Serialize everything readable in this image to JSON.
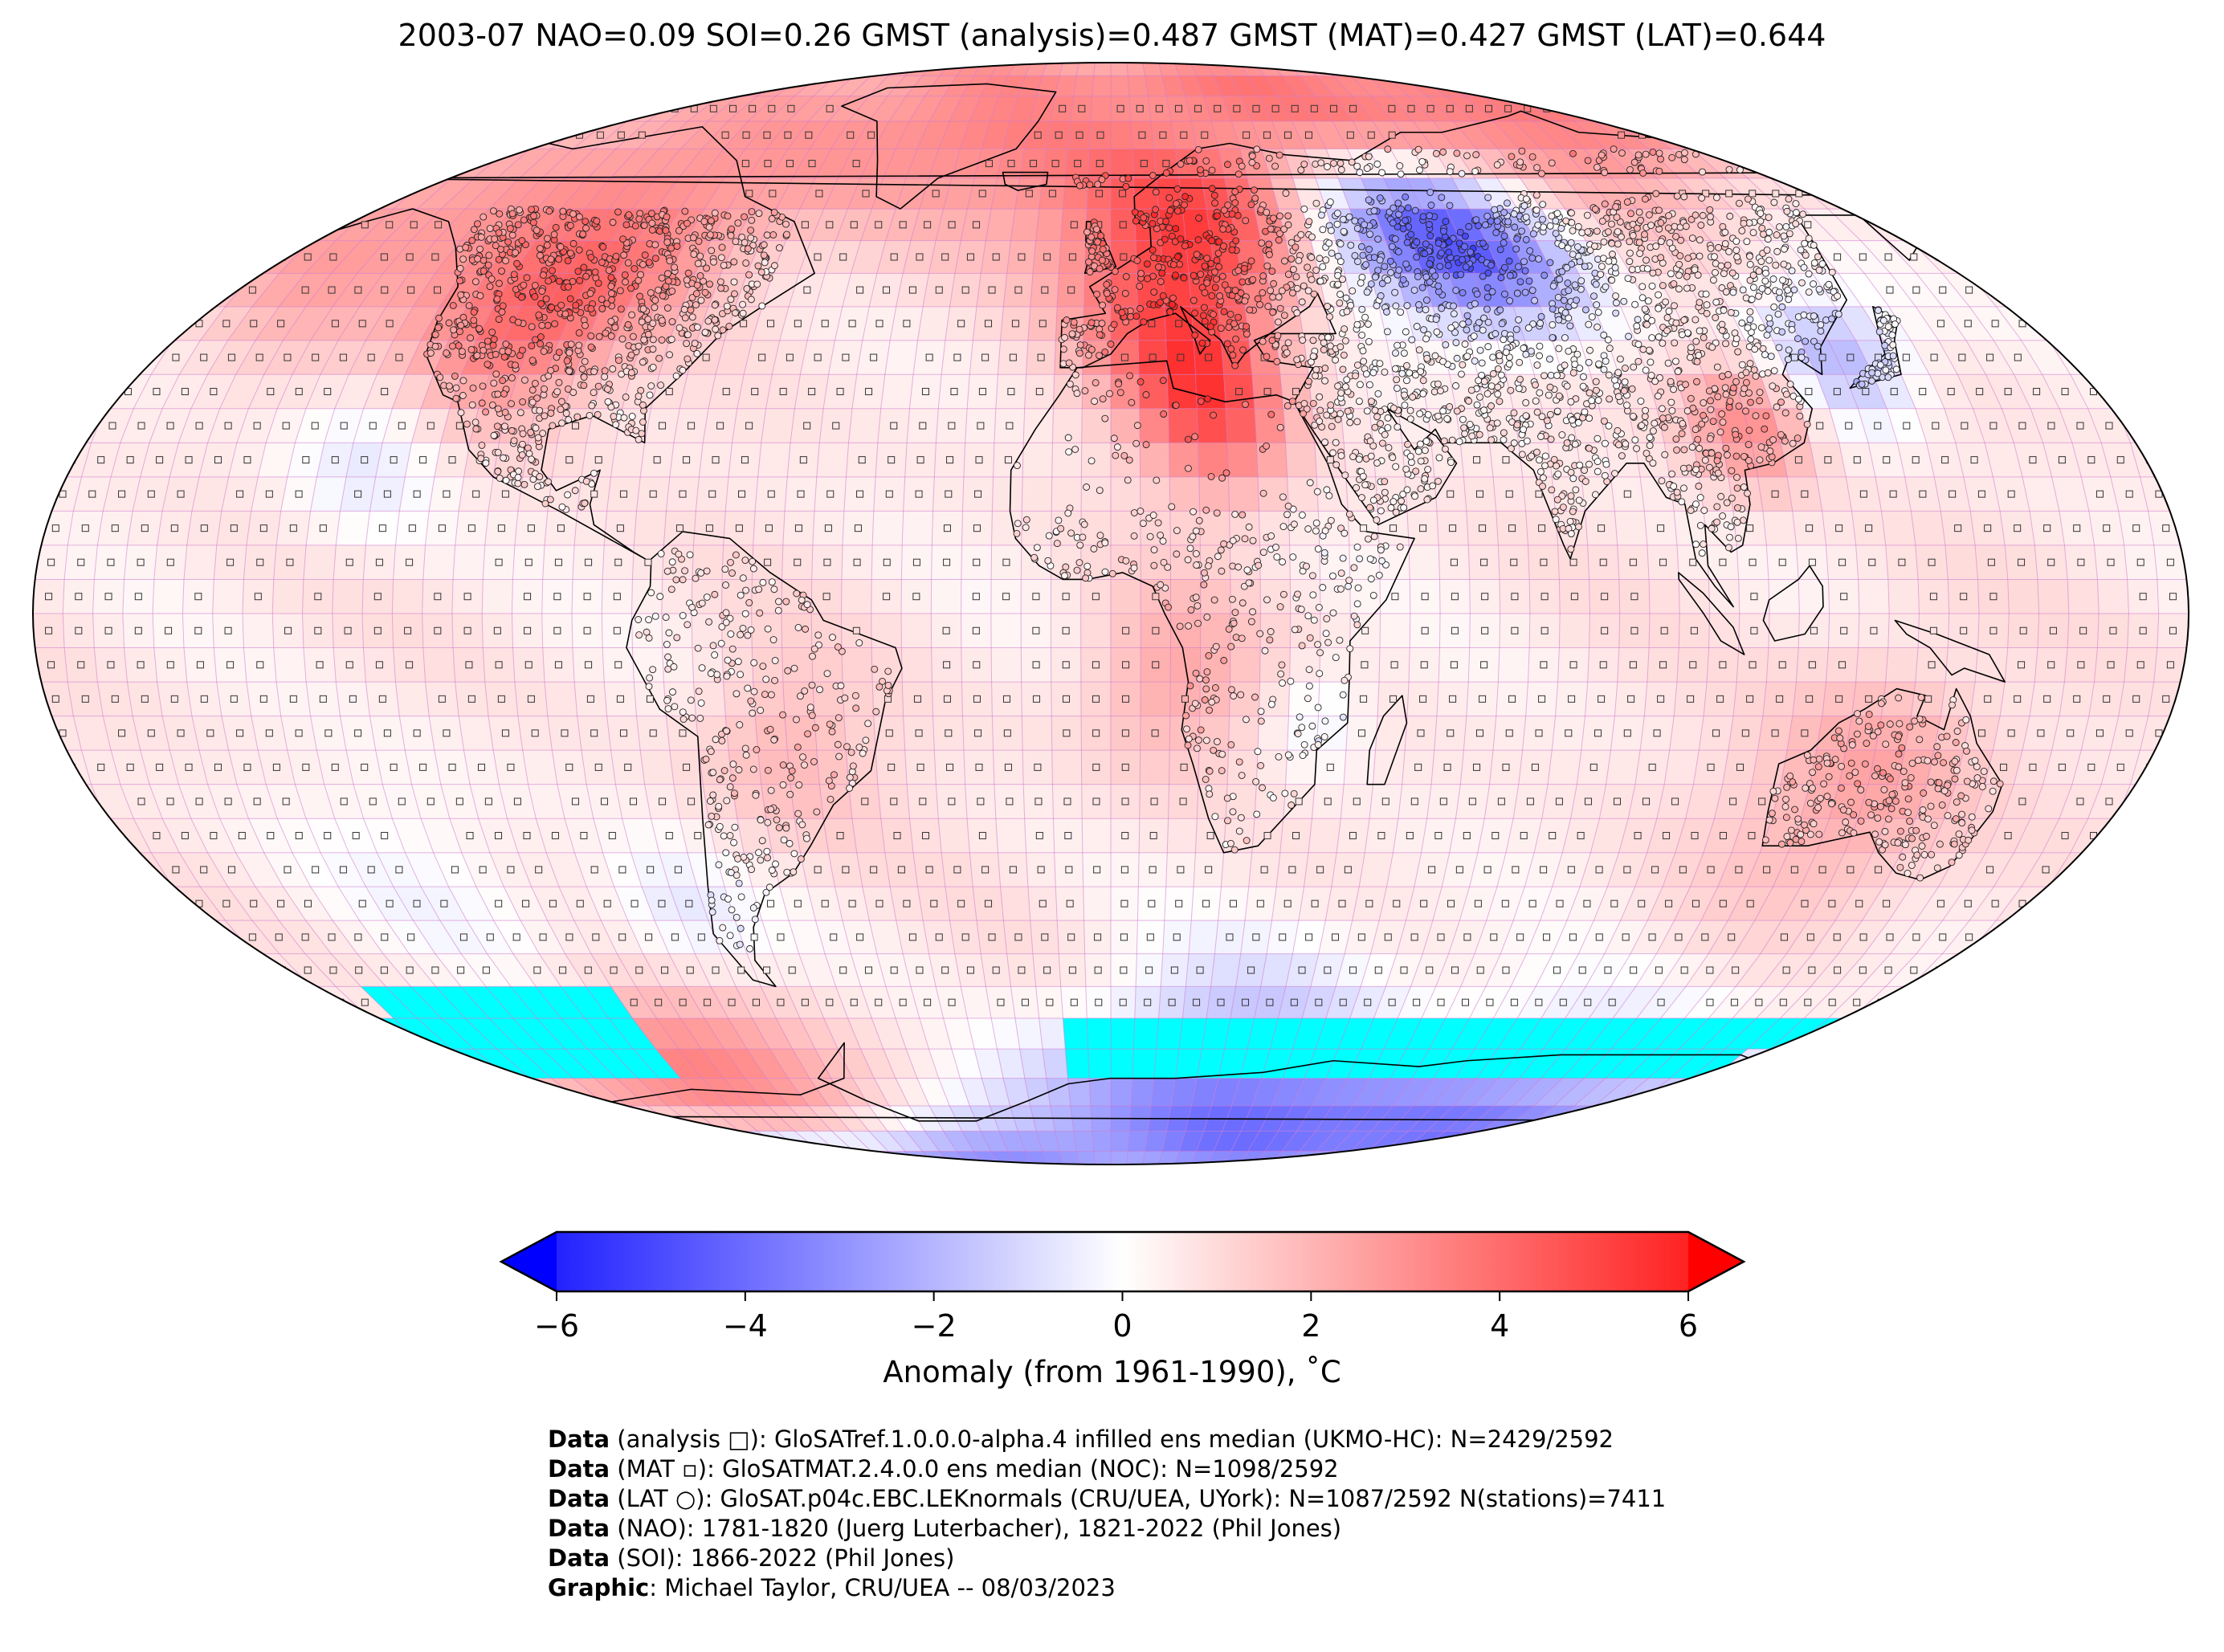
{
  "title": "2003-07 NAO=0.09 SOI=0.26 GMST (analysis)=0.487 GMST (MAT)=0.427 GMST (LAT)=0.644",
  "projection": "robinson",
  "colors": {
    "cold": "#0000ff",
    "neutral": "#ffffff",
    "warm": "#ff0000",
    "missing": "#00ffff",
    "grid": "#cc66cc",
    "coast": "#000000"
  },
  "colorbar": {
    "label": "Anomaly (from 1961-1990), ˚C",
    "min": -6,
    "max": 6,
    "extend": "both",
    "ticks": [
      "−6",
      "−4",
      "−2",
      "0",
      "2",
      "4",
      "6"
    ]
  },
  "credits": [
    {
      "bold": "Data",
      "text": " (analysis □): GloSATref.1.0.0.0-alpha.4 infilled ens median (UKMO-HC): N=2429/2592"
    },
    {
      "bold": "Data",
      "text": " (MAT ▫): GloSATMAT.2.4.0.0 ens median (NOC): N=1098/2592"
    },
    {
      "bold": "Data",
      "text": " (LAT ○): GloSAT.p04c.EBC.LEKnormals (CRU/UEA, UYork): N=1087/2592 N(stations)=7411"
    },
    {
      "bold": "Data",
      "text": " (NAO): 1781-1820 (Juerg Luterbacher), 1821-2022 (Phil Jones)"
    },
    {
      "bold": "Data",
      "text": " (SOI): 1866-2022 (Phil Jones)"
    },
    {
      "bold": "Graphic",
      "text": ": Michael Taylor, CRU/UEA -- 08/03/2023"
    }
  ]
}
